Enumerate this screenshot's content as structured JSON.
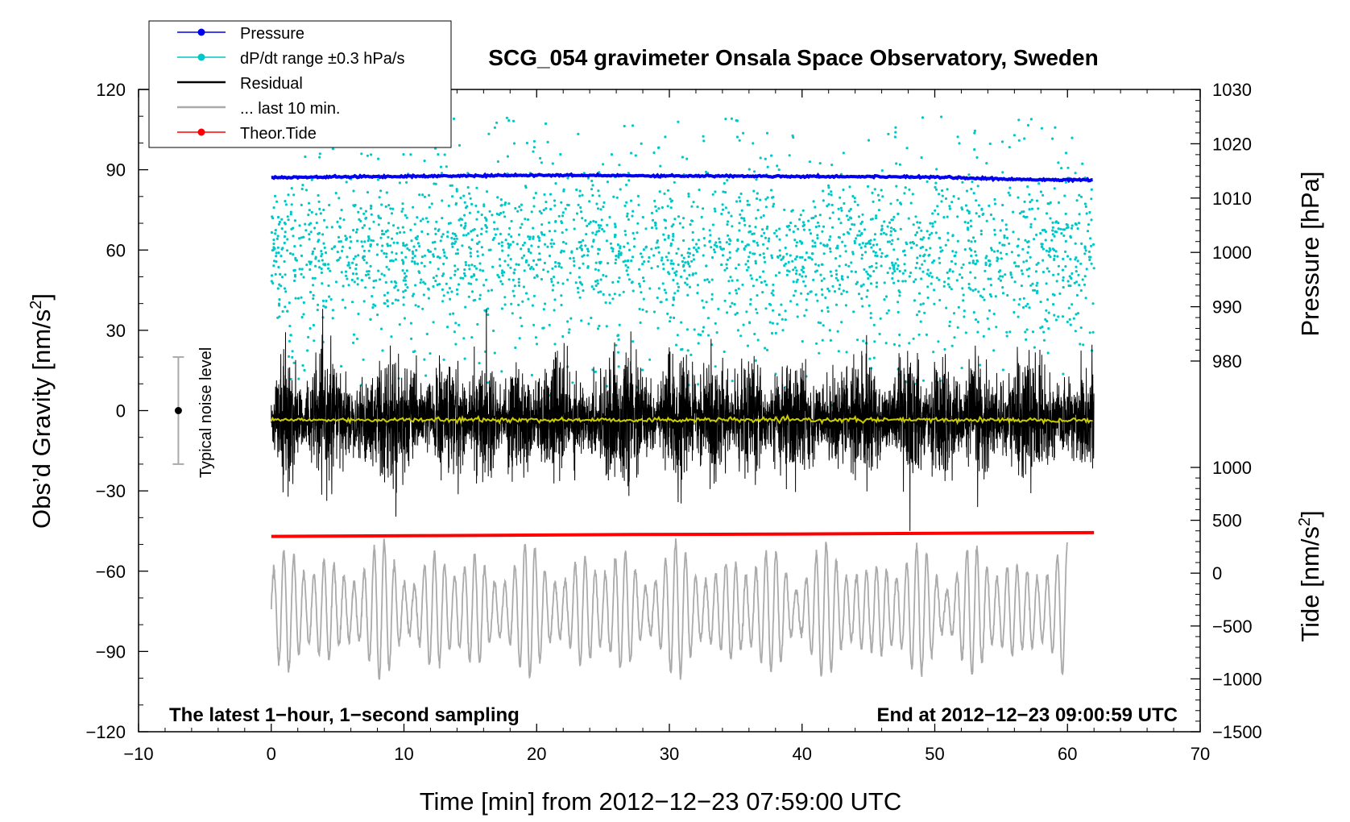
{
  "chart_data": {
    "type": "line",
    "title": "SCG_054 gravimeter Onsala Space Observatory, Sweden",
    "xlabel": "Time [min] from 2012−12−23 07:59:00 UTC",
    "ylabel": "Obs’d Gravity [nm/s",
    "ylabel_sup": "2",
    "ylabel_close": "]",
    "y2label_pressure": "Pressure [hPa]",
    "y2label_tide": "Tide [nm/s",
    "y2label_tide_sup": "2",
    "y2label_tide_close": "]",
    "xlim": [
      -10,
      70
    ],
    "ylim": [
      -120,
      120
    ],
    "pressure_lim": [
      980,
      1030
    ],
    "tide_lim": [
      -1500,
      1000
    ],
    "x_ticks": [
      "−10",
      "0",
      "10",
      "20",
      "30",
      "40",
      "50",
      "60",
      "70"
    ],
    "x_tick_values": [
      -10,
      0,
      10,
      20,
      30,
      40,
      50,
      60,
      70
    ],
    "y_ticks": [
      "120",
      "90",
      "60",
      "30",
      "0",
      "−30",
      "−60",
      "−90",
      "−120"
    ],
    "y_tick_values": [
      120,
      90,
      60,
      30,
      0,
      -30,
      -60,
      -90,
      -120
    ],
    "pressure_ticks": [
      "1030",
      "1020",
      "1010",
      "1000",
      "990",
      "980"
    ],
    "pressure_tick_values": [
      1030,
      1020,
      1010,
      1000,
      990,
      980
    ],
    "tide_ticks": [
      "1000",
      "500",
      "0",
      "−500",
      "−1000",
      "−1500"
    ],
    "tide_tick_values": [
      1000,
      500,
      0,
      -500,
      -1000,
      -1500
    ],
    "legend": [
      {
        "label": "Pressure",
        "color": "#0000ee",
        "marker": true
      },
      {
        "label": "dP/dt range ±0.3 hPa/s",
        "color": "#00c8c8",
        "marker": true
      },
      {
        "label": "Residual",
        "color": "#000000",
        "marker": false
      },
      {
        "label": "... last 10 min.",
        "color": "#aaaaaa",
        "marker": false
      },
      {
        "label": "Theor.Tide",
        "color": "#ff0000",
        "marker": true
      }
    ],
    "annotations": {
      "left": "The latest 1−hour, 1−second sampling",
      "right": "End at 2012−12−23 09:00:59 UTC",
      "noise": "Typical noise level"
    },
    "series": [
      {
        "name": "Pressure",
        "axis": "pressure",
        "color": "#0000ee",
        "x": [
          0,
          10,
          20,
          30,
          40,
          50,
          55,
          62
        ],
        "values": [
          1013.8,
          1014.0,
          1014.2,
          1014.1,
          1014.0,
          1013.9,
          1013.5,
          1013.3
        ]
      },
      {
        "name": "dP/dt range ±0.3 hPa/s",
        "axis": "pressure",
        "color": "#00c8c8",
        "x_range": [
          0,
          62
        ],
        "center": 1000,
        "spread": 25
      },
      {
        "name": "Residual",
        "axis": "gravity",
        "color": "#000000",
        "x_range": [
          0,
          62
        ],
        "center": -3,
        "amplitude": 40
      },
      {
        "name": "Residual mean",
        "axis": "gravity",
        "color": "#cccc00",
        "x_range": [
          0,
          62
        ],
        "center": -3.5
      },
      {
        "name": "... last 10 min.",
        "axis": "tide",
        "color": "#aaaaaa",
        "x_range": [
          0,
          60
        ],
        "center": -350,
        "amplitude": 650
      },
      {
        "name": "Theor.Tide",
        "axis": "gravity",
        "color": "#ff0000",
        "x": [
          0,
          12.7,
          27,
          40,
          52,
          62
        ],
        "values": [
          -47,
          -46.7,
          -46.3,
          -46.1,
          -45.8,
          -45.6
        ]
      },
      {
        "name": "Typical noise level",
        "axis": "gravity",
        "color": "#aaaaaa",
        "x": [
          -7
        ],
        "values": [
          0
        ],
        "range": [
          -20,
          20
        ]
      }
    ]
  }
}
